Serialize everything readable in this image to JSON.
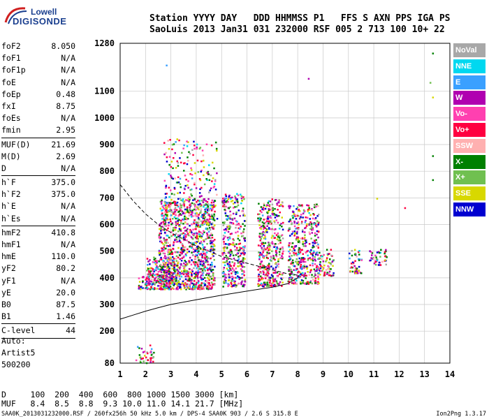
{
  "logo": {
    "line1": "Lowell",
    "line2": "DIGISONDE"
  },
  "header": {
    "labels": "Station YYYY DAY   DDD HHMMSS P1   FFS S AXN PPS IGA PS",
    "values": "SaoLuis 2013 Jan31 031 232000 RSF 005 2 713 100 10+ 22"
  },
  "params": [
    {
      "k": "foF2",
      "v": "8.050"
    },
    {
      "k": "foF1",
      "v": "N/A"
    },
    {
      "k": "foF1p",
      "v": "N/A"
    },
    {
      "k": "foE",
      "v": "N/A"
    },
    {
      "k": "foEp",
      "v": "0.48"
    },
    {
      "k": "fxI",
      "v": "8.75"
    },
    {
      "k": "foEs",
      "v": "N/A"
    },
    {
      "k": "fmin",
      "v": "2.95"
    },
    {
      "k": "MUF(D)",
      "v": "21.69"
    },
    {
      "k": "M(D)",
      "v": "2.69"
    },
    {
      "k": "D",
      "v": "N/A"
    },
    {
      "k": "h`F",
      "v": "375.0"
    },
    {
      "k": "h`F2",
      "v": "375.0"
    },
    {
      "k": "h`E",
      "v": "N/A"
    },
    {
      "k": "h`Es",
      "v": "N/A"
    },
    {
      "k": "hmF2",
      "v": "410.8"
    },
    {
      "k": "hmF1",
      "v": "N/A"
    },
    {
      "k": "hmE",
      "v": "110.0"
    },
    {
      "k": "yF2",
      "v": "80.2"
    },
    {
      "k": "yF1",
      "v": "N/A"
    },
    {
      "k": "yE",
      "v": "20.0"
    },
    {
      "k": "B0",
      "v": "87.5"
    },
    {
      "k": "B1",
      "v": "1.46"
    },
    {
      "k": "C-level",
      "v": "44"
    }
  ],
  "auto": {
    "l1": "Auto:",
    "l2": "Artist5",
    "l3": "500200"
  },
  "dmuf": {
    "d_line": "D     100  200  400  600  800 1000 1500 3000 [km]",
    "muf_line": "MUF   8.4  8.5  8.8  9.3 10.0 11.0 14.1 21.7 [MHz]"
  },
  "footer": "SAA0K_2013031232000.RSF / 260fx256h 50 kHz 5.0 km / DPS-4 SAA0K 903 / 2.6 S 315.8 E",
  "version": "Ion2Png 1.3.17",
  "legend": [
    {
      "label": "NoVal",
      "color": "#a8a8a8"
    },
    {
      "label": "NNE",
      "color": "#00d8f0"
    },
    {
      "label": "E",
      "color": "#3aa0ff"
    },
    {
      "label": "W",
      "color": "#b000b0"
    },
    {
      "label": "Vo-",
      "color": "#ff40b0"
    },
    {
      "label": "Vo+",
      "color": "#ff0040"
    },
    {
      "label": "SSW",
      "color": "#ffb0b0"
    },
    {
      "label": "X-",
      "color": "#008000"
    },
    {
      "label": "X+",
      "color": "#70c050"
    },
    {
      "label": "SSE",
      "color": "#d8d800"
    },
    {
      "label": "NNW",
      "color": "#0000d0"
    }
  ],
  "chart_data": {
    "type": "scatter",
    "x_ticks": [
      1,
      2,
      3,
      4,
      5,
      6,
      7,
      8,
      9,
      10,
      11,
      12,
      13,
      14
    ],
    "y_ticks": [
      80,
      200,
      300,
      400,
      500,
      600,
      700,
      800,
      900,
      1000,
      1100,
      1280
    ],
    "xlim": [
      1,
      14
    ],
    "ylim": [
      80,
      1280
    ],
    "grid": true,
    "clusters": [
      {
        "x": [
          1.6,
          2.3
        ],
        "y": [
          80,
          150
        ],
        "density": 0.5
      },
      {
        "x": [
          1.7,
          3.0
        ],
        "y": [
          360,
          420
        ],
        "density": 1.0
      },
      {
        "x": [
          2.0,
          3.2
        ],
        "y": [
          380,
          480
        ],
        "density": 0.9
      },
      {
        "x": [
          2.5,
          4.7
        ],
        "y": [
          360,
          700
        ],
        "density": 1.0
      },
      {
        "x": [
          2.7,
          4.8
        ],
        "y": [
          600,
          930
        ],
        "density": 0.25
      },
      {
        "x": [
          5.0,
          5.9
        ],
        "y": [
          370,
          720
        ],
        "density": 0.8
      },
      {
        "x": [
          6.4,
          7.4
        ],
        "y": [
          370,
          700
        ],
        "density": 0.8
      },
      {
        "x": [
          7.6,
          8.8
        ],
        "y": [
          380,
          680
        ],
        "density": 0.8
      },
      {
        "x": [
          8.8,
          9.4
        ],
        "y": [
          410,
          510
        ],
        "density": 0.7
      },
      {
        "x": [
          10.0,
          10.5
        ],
        "y": [
          420,
          510
        ],
        "density": 0.7
      },
      {
        "x": [
          10.8,
          11.5
        ],
        "y": [
          450,
          510
        ],
        "density": 0.7
      }
    ],
    "profile_solid": [
      [
        1,
        245
      ],
      [
        1.5,
        260
      ],
      [
        2,
        275
      ],
      [
        2.5,
        288
      ],
      [
        3,
        300
      ],
      [
        4,
        318
      ],
      [
        5,
        335
      ],
      [
        6,
        350
      ],
      [
        7,
        365
      ],
      [
        7.6,
        378
      ],
      [
        8.0,
        400
      ],
      [
        8.05,
        410
      ]
    ],
    "profile_dashed": [
      [
        1,
        750
      ],
      [
        1.5,
        690
      ],
      [
        2,
        640
      ],
      [
        2.5,
        600
      ],
      [
        3,
        570
      ],
      [
        4,
        520
      ],
      [
        5,
        480
      ],
      [
        6,
        455
      ],
      [
        7,
        430
      ],
      [
        7.6,
        415
      ],
      [
        8.0,
        410
      ]
    ]
  }
}
